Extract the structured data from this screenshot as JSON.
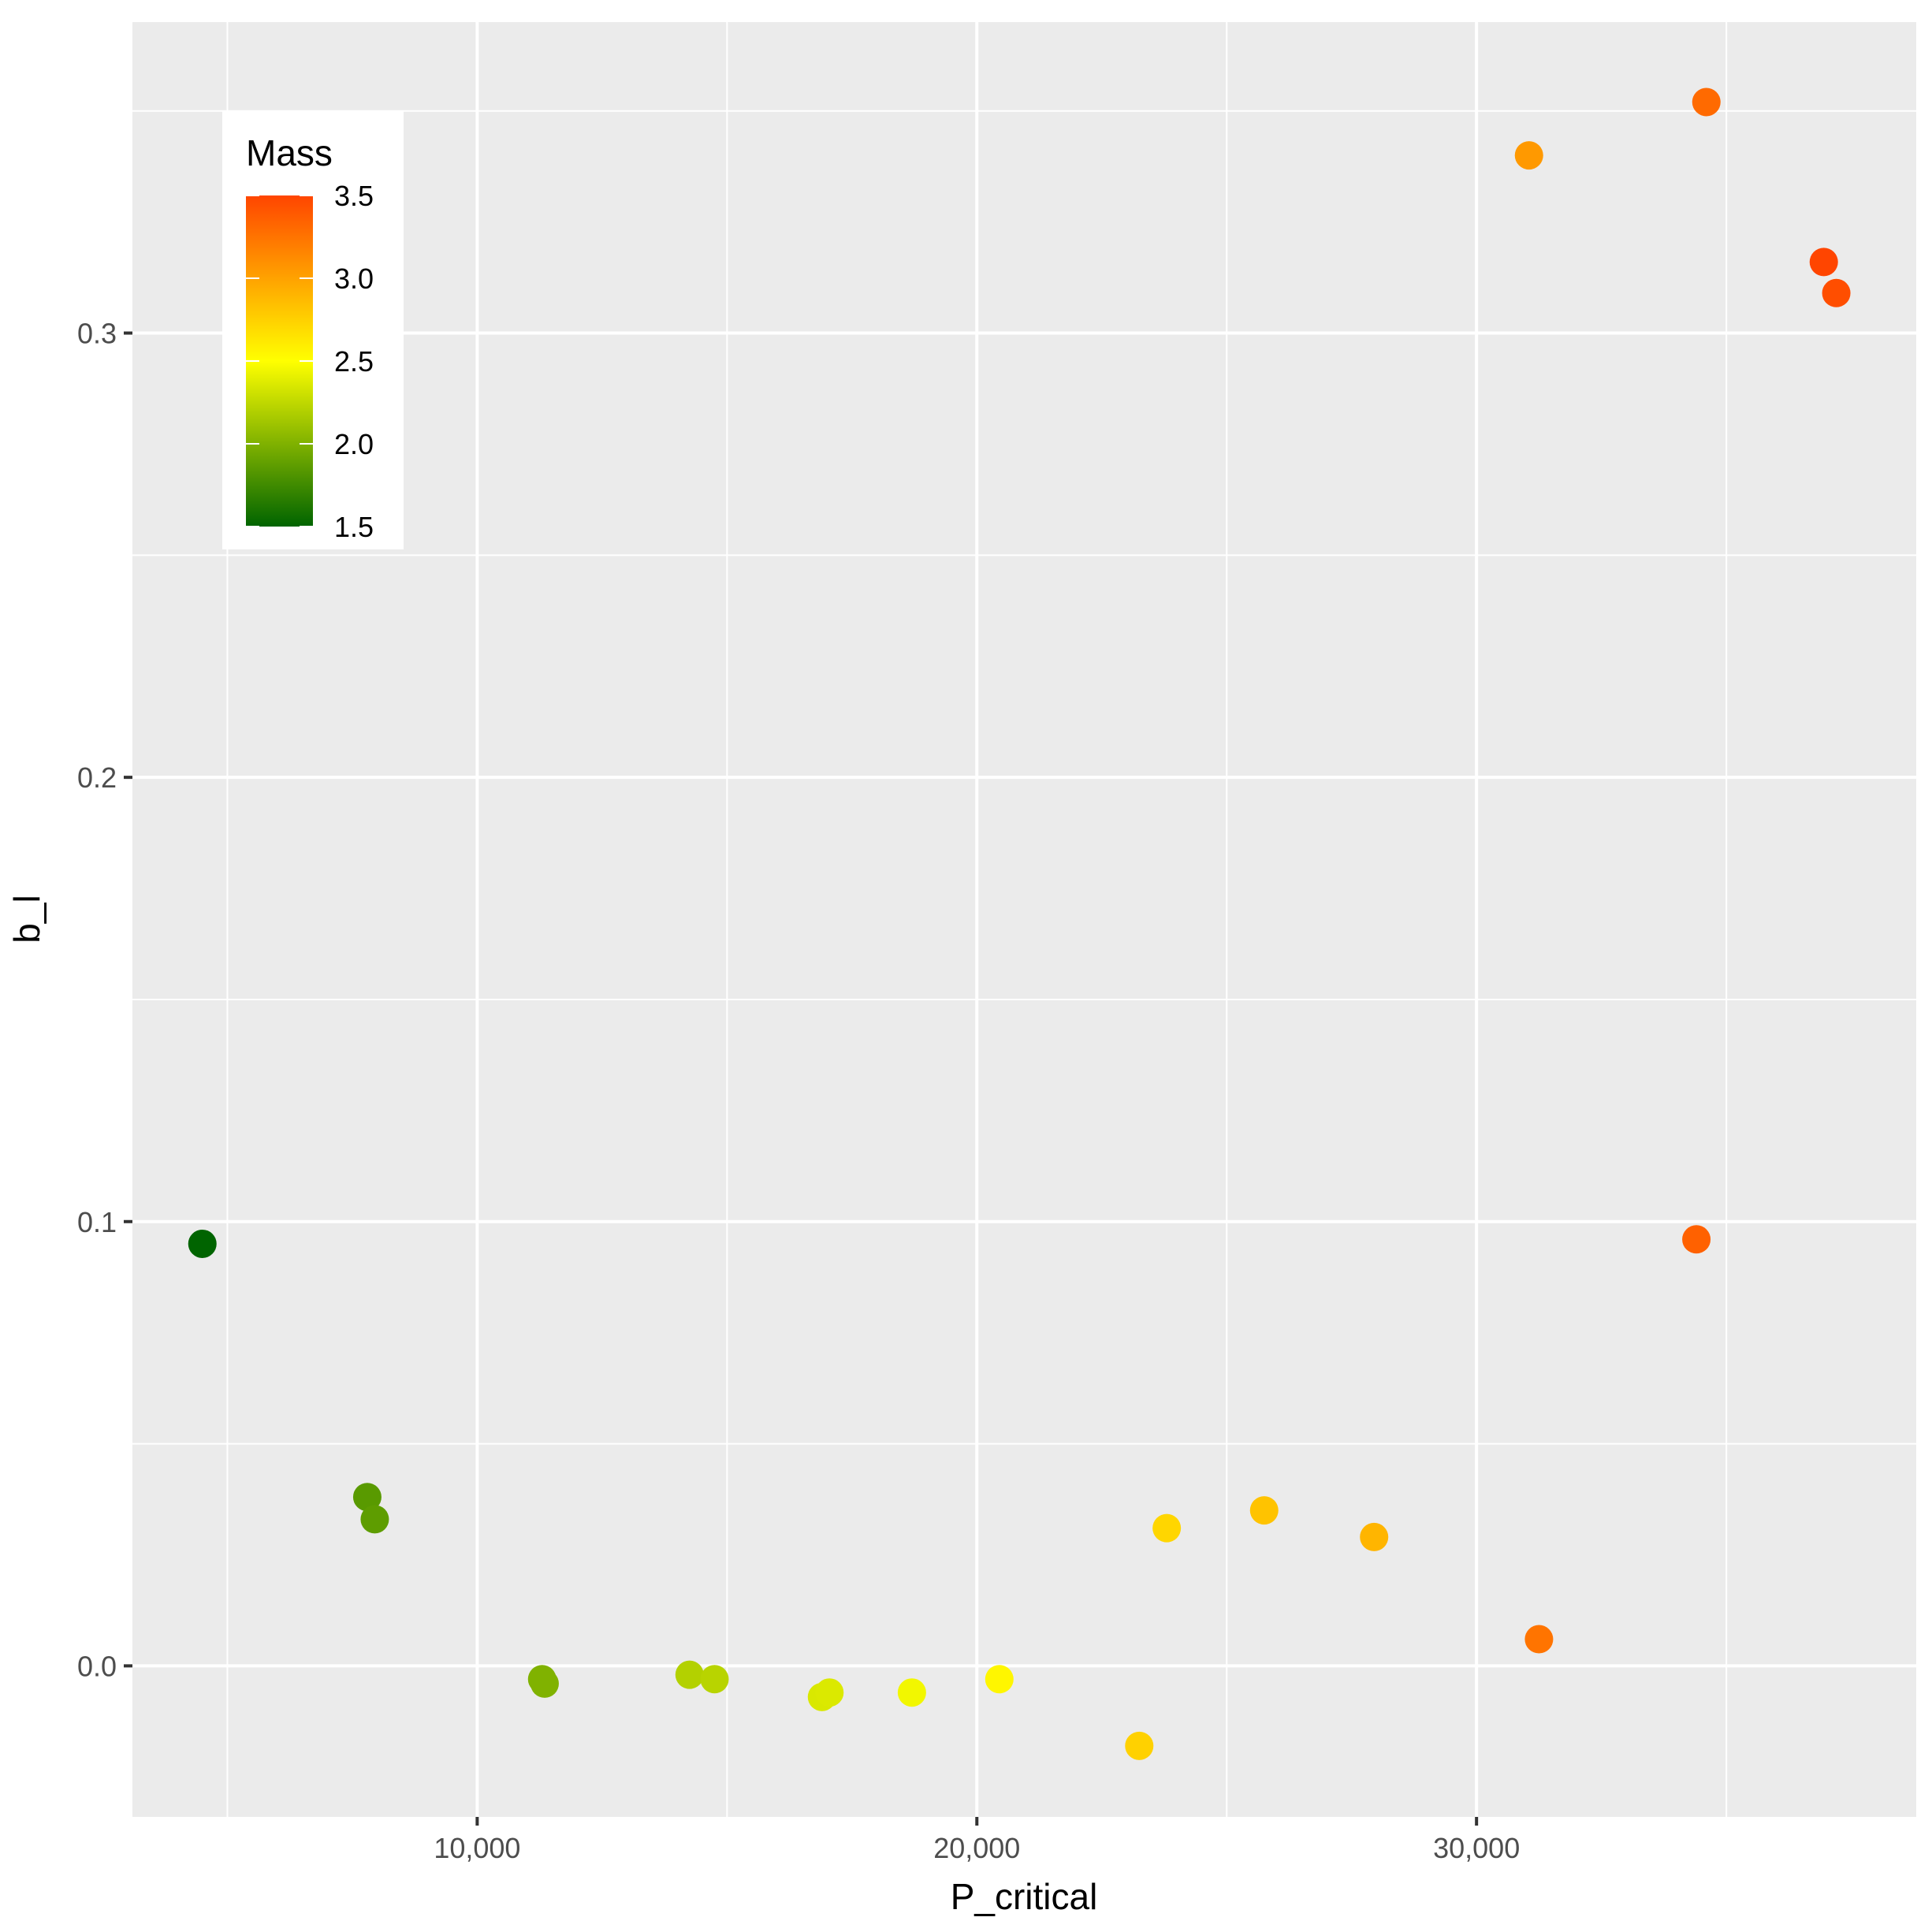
{
  "chart_data": {
    "type": "scatter",
    "xlabel": "P_critical",
    "ylabel": "b_l",
    "xlim": [
      3100,
      38800
    ],
    "ylim": [
      -0.034,
      0.37
    ],
    "x_ticks": [
      10000,
      20000,
      30000
    ],
    "x_tick_labels": [
      "10,000",
      "20,000",
      "30,000"
    ],
    "y_ticks": [
      0.0,
      0.1,
      0.2,
      0.3
    ],
    "y_tick_labels": [
      "0.0",
      "0.1",
      "0.2",
      "0.3"
    ],
    "grid": true,
    "colorbar": {
      "title": "Mass",
      "range": [
        1.5,
        3.5
      ],
      "ticks": [
        1.5,
        2.0,
        2.5,
        3.0,
        3.5
      ],
      "tick_labels": [
        "1.5",
        "2.0",
        "2.5",
        "3.0",
        "3.5"
      ],
      "colors": [
        "#006400",
        "#FFFF00",
        "#FF4500"
      ],
      "placement": "top-left"
    },
    "points": [
      {
        "x": 4500,
        "y": 0.095,
        "mass": 1.5
      },
      {
        "x": 7800,
        "y": 0.038,
        "mass": 1.85
      },
      {
        "x": 7950,
        "y": 0.033,
        "mass": 1.87
      },
      {
        "x": 11300,
        "y": -0.003,
        "mass": 2.0
      },
      {
        "x": 11350,
        "y": -0.004,
        "mass": 2.0
      },
      {
        "x": 14250,
        "y": -0.002,
        "mass": 2.2
      },
      {
        "x": 14750,
        "y": -0.003,
        "mass": 2.22
      },
      {
        "x": 16900,
        "y": -0.007,
        "mass": 2.35
      },
      {
        "x": 17050,
        "y": -0.006,
        "mass": 2.36
      },
      {
        "x": 18700,
        "y": -0.006,
        "mass": 2.45
      },
      {
        "x": 20450,
        "y": -0.003,
        "mass": 2.55
      },
      {
        "x": 23250,
        "y": -0.018,
        "mass": 2.75
      },
      {
        "x": 23800,
        "y": 0.031,
        "mass": 2.72
      },
      {
        "x": 25750,
        "y": 0.035,
        "mass": 2.82
      },
      {
        "x": 27950,
        "y": 0.029,
        "mass": 2.9
      },
      {
        "x": 31050,
        "y": 0.34,
        "mass": 3.05
      },
      {
        "x": 31250,
        "y": 0.006,
        "mass": 3.25
      },
      {
        "x": 34400,
        "y": 0.096,
        "mass": 3.35
      },
      {
        "x": 34600,
        "y": 0.352,
        "mass": 3.3
      },
      {
        "x": 36950,
        "y": 0.316,
        "mass": 3.5
      },
      {
        "x": 37200,
        "y": 0.309,
        "mass": 3.45
      }
    ]
  }
}
